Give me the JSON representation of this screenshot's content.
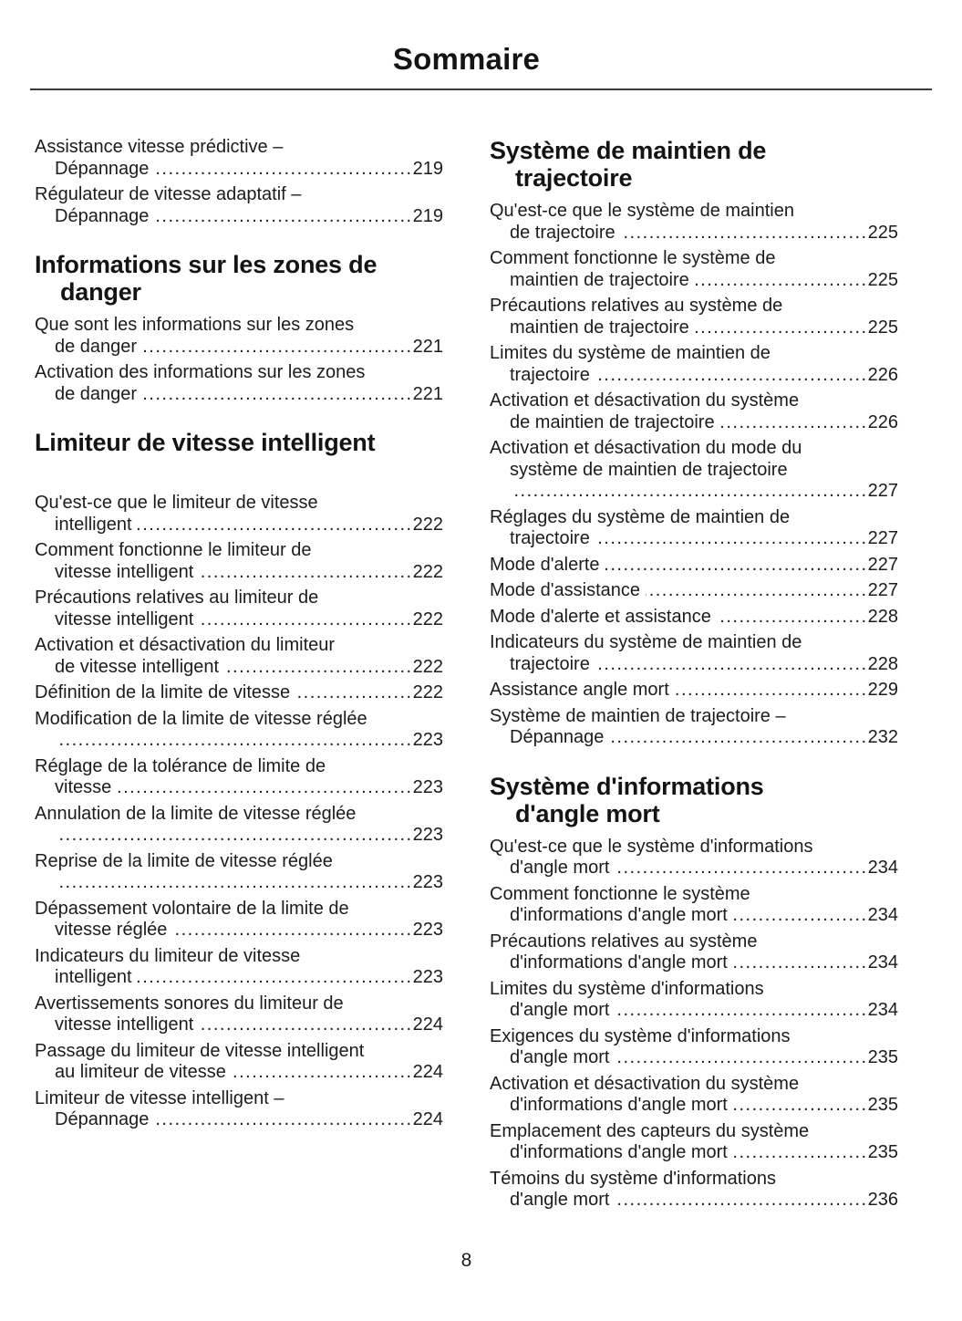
{
  "title": "Sommaire",
  "footer": {
    "page_number": "8"
  },
  "colors": {
    "text": "#1c1c1c",
    "rule": "#3a3a3a",
    "background": "#ffffff"
  },
  "columns": [
    {
      "items": [
        {
          "type": "entry",
          "lines": [
            "Assistance vitesse prédictive –",
            "Dépannage"
          ],
          "page": "219"
        },
        {
          "type": "entry",
          "lines": [
            "Régulateur de vitesse adaptatif –",
            "Dépannage"
          ],
          "page": "219"
        },
        {
          "type": "heading",
          "lines": [
            "Informations sur les zones de",
            "danger"
          ]
        },
        {
          "type": "entry",
          "lines": [
            "Que sont les informations sur les zones",
            "de danger"
          ],
          "page": "221"
        },
        {
          "type": "entry",
          "lines": [
            "Activation des informations sur les zones",
            "de danger"
          ],
          "page": "221"
        },
        {
          "type": "heading",
          "lines": [
            "Limiteur de vitesse intelligent"
          ]
        },
        {
          "type": "entry",
          "lines": [
            "Qu'est-ce que le limiteur de vitesse",
            "intelligent"
          ],
          "page": "222"
        },
        {
          "type": "entry",
          "lines": [
            "Comment fonctionne le limiteur de",
            "vitesse intelligent"
          ],
          "page": "222"
        },
        {
          "type": "entry",
          "lines": [
            "Précautions relatives au limiteur de",
            "vitesse intelligent"
          ],
          "page": "222"
        },
        {
          "type": "entry",
          "lines": [
            "Activation et désactivation du limiteur",
            "de vitesse intelligent"
          ],
          "page": "222"
        },
        {
          "type": "entry",
          "lines": [
            "Définition de la limite de vitesse"
          ],
          "page": "222"
        },
        {
          "type": "entry",
          "lines": [
            "Modification de la limite de vitesse réglée",
            ""
          ],
          "page": "223"
        },
        {
          "type": "entry",
          "lines": [
            "Réglage de la tolérance de limite de",
            "vitesse"
          ],
          "page": "223"
        },
        {
          "type": "entry",
          "lines": [
            "Annulation de la limite de vitesse réglée",
            ""
          ],
          "page": "223"
        },
        {
          "type": "entry",
          "lines": [
            "Reprise de la limite de vitesse réglée",
            ""
          ],
          "page": "223"
        },
        {
          "type": "entry",
          "lines": [
            "Dépassement volontaire de la limite de",
            "vitesse réglée"
          ],
          "page": "223"
        },
        {
          "type": "entry",
          "lines": [
            "Indicateurs du limiteur de vitesse",
            "intelligent"
          ],
          "page": "223"
        },
        {
          "type": "entry",
          "lines": [
            "Avertissements sonores du limiteur de",
            "vitesse intelligent"
          ],
          "page": "224"
        },
        {
          "type": "entry",
          "lines": [
            "Passage du limiteur de vitesse intelligent",
            "au limiteur de vitesse"
          ],
          "page": "224"
        },
        {
          "type": "entry",
          "lines": [
            "Limiteur de vitesse intelligent –",
            "Dépannage"
          ],
          "page": "224"
        }
      ]
    },
    {
      "items": [
        {
          "type": "heading",
          "lines": [
            "Système de maintien de",
            "trajectoire"
          ]
        },
        {
          "type": "entry",
          "lines": [
            "Qu'est-ce que le système de maintien",
            "de trajectoire"
          ],
          "page": "225"
        },
        {
          "type": "entry",
          "lines": [
            "Comment fonctionne le système de",
            "maintien de trajectoire"
          ],
          "page": "225"
        },
        {
          "type": "entry",
          "lines": [
            "Précautions relatives au système de",
            "maintien de trajectoire"
          ],
          "page": "225"
        },
        {
          "type": "entry",
          "lines": [
            "Limites du système de maintien de",
            "trajectoire"
          ],
          "page": "226"
        },
        {
          "type": "entry",
          "lines": [
            "Activation et désactivation du système",
            "de maintien de trajectoire"
          ],
          "page": "226"
        },
        {
          "type": "entry",
          "lines": [
            "Activation et désactivation du mode du",
            "système de maintien de trajectoire",
            ""
          ],
          "page": "227"
        },
        {
          "type": "entry",
          "lines": [
            "Réglages du système de maintien de",
            "trajectoire"
          ],
          "page": "227"
        },
        {
          "type": "entry",
          "lines": [
            "Mode d'alerte"
          ],
          "page": "227"
        },
        {
          "type": "entry",
          "lines": [
            "Mode d'assistance"
          ],
          "page": "227"
        },
        {
          "type": "entry",
          "lines": [
            "Mode d'alerte et assistance"
          ],
          "page": "228"
        },
        {
          "type": "entry",
          "lines": [
            "Indicateurs du système de maintien de",
            "trajectoire"
          ],
          "page": "228"
        },
        {
          "type": "entry",
          "lines": [
            "Assistance angle mort"
          ],
          "page": "229"
        },
        {
          "type": "entry",
          "lines": [
            "Système de maintien de trajectoire –",
            "Dépannage"
          ],
          "page": "232"
        },
        {
          "type": "heading",
          "lines": [
            "Système d'informations",
            "d'angle mort"
          ]
        },
        {
          "type": "entry",
          "lines": [
            "Qu'est-ce que le système d'informations",
            "d'angle mort"
          ],
          "page": "234"
        },
        {
          "type": "entry",
          "lines": [
            "Comment fonctionne le système",
            "d'informations d'angle mort"
          ],
          "page": "234"
        },
        {
          "type": "entry",
          "lines": [
            "Précautions relatives au système",
            "d'informations d'angle mort"
          ],
          "page": "234"
        },
        {
          "type": "entry",
          "lines": [
            "Limites du système d'informations",
            "d'angle mort"
          ],
          "page": "234"
        },
        {
          "type": "entry",
          "lines": [
            "Exigences du système d'informations",
            "d'angle mort"
          ],
          "page": "235"
        },
        {
          "type": "entry",
          "lines": [
            "Activation et désactivation du système",
            "d'informations d'angle mort"
          ],
          "page": "235"
        },
        {
          "type": "entry",
          "lines": [
            "Emplacement des capteurs du système",
            "d'informations d'angle mort"
          ],
          "page": "235"
        },
        {
          "type": "entry",
          "lines": [
            "Témoins du système d'informations",
            "d'angle mort"
          ],
          "page": "236"
        }
      ]
    }
  ]
}
